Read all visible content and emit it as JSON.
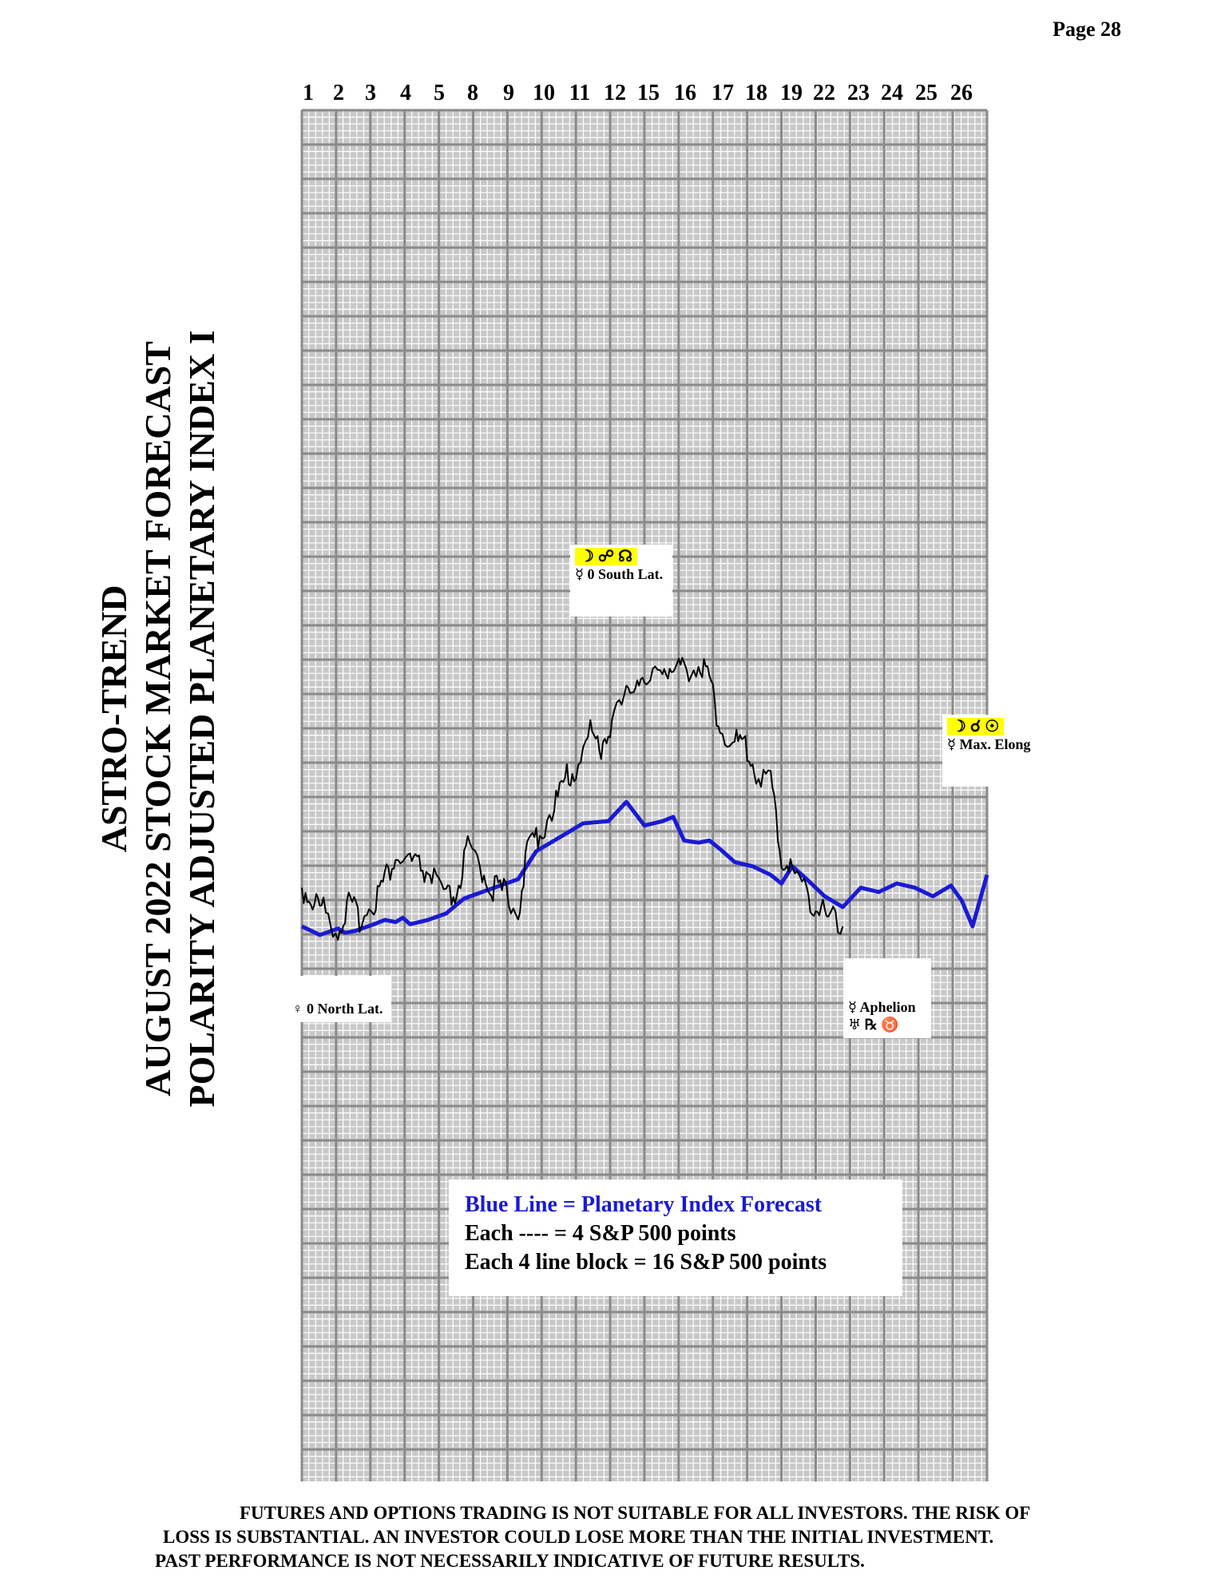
{
  "page": {
    "number": "Page  28"
  },
  "title": {
    "line1": "ASTRO-TREND",
    "line2": "AUGUST 2022  STOCK MARKET FORECAST",
    "line3": "POLARITY ADJUSTED PLANETARY INDEX I"
  },
  "chart_data": {
    "type": "line",
    "title": "",
    "x_tick_labels": [
      "1",
      "2",
      "3",
      "4",
      "5",
      "8",
      "9",
      "10",
      "11",
      "12",
      "15",
      "16",
      "17",
      "18",
      "19",
      "22",
      "23",
      "24",
      "25",
      "26"
    ],
    "y_units": "S&P 500 points (relative)",
    "series": [
      {
        "name": "Planetary Index Forecast",
        "color": "#1a1ad4",
        "x": [
          1,
          1.5,
          2,
          2.2,
          2.5,
          3,
          3.3,
          3.6,
          3.8,
          4,
          4.5,
          5,
          5.5,
          6,
          6.5,
          7,
          7.5,
          8,
          8.4,
          8.8,
          9.5,
          10,
          10.5,
          11,
          11.3,
          11.6,
          12,
          12.3,
          12.6,
          13,
          13.5,
          14,
          14.3,
          14.6,
          15,
          15.5,
          16,
          16.5,
          17,
          17.5,
          18,
          18.5,
          19,
          19.3,
          19.6,
          20
        ],
        "values": [
          0,
          -4,
          -1,
          -3,
          -2,
          1,
          3,
          2,
          4,
          1,
          3,
          6,
          13,
          16,
          19,
          22,
          35,
          40,
          44,
          48,
          49,
          58,
          47,
          49,
          51,
          40,
          39,
          40,
          36,
          30,
          28,
          24,
          20,
          28,
          22,
          14,
          9,
          18,
          16,
          20,
          18,
          14,
          19,
          12,
          0,
          24
        ]
      },
      {
        "name": "",
        "color": "#000000",
        "x": [
          1,
          1.3,
          1.6,
          2,
          2.3,
          2.6,
          3,
          3.3,
          3.6,
          4,
          4.3,
          4.6,
          5,
          5.3,
          5.6,
          6,
          6.3,
          6.6,
          7,
          7.3,
          7.6,
          8,
          8.3,
          8.6,
          9,
          9.3,
          9.6,
          10,
          10.3,
          10.6,
          11,
          11.3,
          11.6,
          12,
          12.3,
          12.6,
          13,
          13.3,
          13.6,
          14,
          14.3,
          14.6,
          15,
          15.3,
          15.6,
          16
        ],
        "values": [
          18,
          12,
          8,
          -2,
          10,
          4,
          12,
          22,
          32,
          30,
          27,
          24,
          12,
          16,
          36,
          26,
          18,
          16,
          8,
          38,
          44,
          56,
          68,
          74,
          90,
          84,
          96,
          106,
          118,
          110,
          124,
          118,
          120,
          122,
          116,
          92,
          86,
          84,
          72,
          68,
          32,
          26,
          16,
          8,
          4,
          0
        ]
      }
    ],
    "annotations": [
      {
        "symbols": "☽ ☍ ☊",
        "text": "☿ 0 South Lat.",
        "at_day": "11"
      },
      {
        "symbols": "☽ ☌ ☉",
        "text": "☿ Max. Elong",
        "at_day": "26"
      },
      {
        "symbols": "",
        "text": "♀ 0 North Lat.",
        "at_day": "2"
      },
      {
        "symbols": "♅ ℞ ♉",
        "text": "☿ Aphelion",
        "at_day": "24"
      }
    ],
    "grid": true
  },
  "legend": {
    "line1": "Blue Line = Planetary Index Forecast",
    "line2": "Each ---- =   4 S&P 500 points",
    "line3": "Each 4 line block =  16  S&P 500 points"
  },
  "disclaimer": {
    "line1": "FUTURES AND OPTIONS TRADING IS NOT SUITABLE FOR ALL INVESTORS.  THE RISK OF",
    "line2": "LOSS IS SUBSTANTIAL.  AN INVESTOR COULD LOSE MORE THAN THE INITIAL INVESTMENT.",
    "line3": "PAST PERFORMANCE IS NOT NECESSARILY INDICATIVE OF FUTURE RESULTS."
  }
}
